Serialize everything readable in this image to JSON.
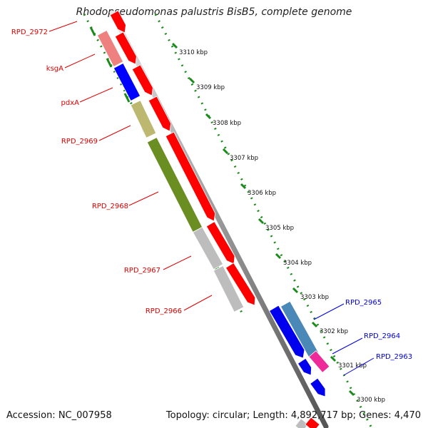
{
  "title": "Rhodopseudomonas palustris BisB5, complete genome",
  "footer": {
    "accession": "Accession: NC_007958",
    "topology": "Topology: circular; Length: 4,892,717 bp; Genes: 4,470"
  },
  "ruler": [
    "3310 kbp",
    "3309 kbp",
    "3308 kbp",
    "3307 kbp",
    "3306 kbp",
    "3305 kbp",
    "3304 kbp",
    "3303 kbp",
    "3302 kbp",
    "3301 kbp",
    "3300 kbp"
  ],
  "gene_labels_left": [
    "RPD_2972",
    "ksgA",
    "pdxA",
    "RPD_2969",
    "RPD_2968",
    "RPD_2967",
    "RPD_2966"
  ],
  "gene_labels_right": [
    "RPD_2965",
    "RPD_2964",
    "RPD_2963"
  ],
  "colors": {
    "forward": "#ff0000",
    "ksgA": "#ee8080",
    "pdxA": "#0000ff",
    "rpd2969": "#bcb870",
    "rpd2968": "#6b8e23",
    "grey": "#bdbdbd",
    "rpd2965": "#4a88b8",
    "rpd2964": "#0000ee",
    "rpd2963": "#ee2a9a",
    "label_left": "#dd0000",
    "label_right": "#0000dd",
    "dots": "#1a8a1a"
  }
}
